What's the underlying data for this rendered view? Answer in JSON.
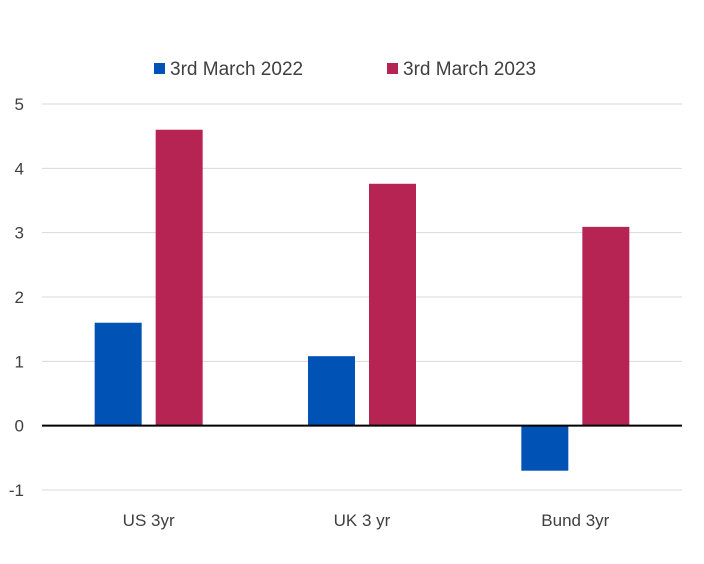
{
  "chart_data": {
    "type": "bar",
    "categories": [
      "US 3yr",
      "UK 3 yr",
      "Bund 3yr"
    ],
    "series": [
      {
        "name": "3rd March 2022",
        "color": "#0052b4",
        "values": [
          1.6,
          1.08,
          -0.7
        ]
      },
      {
        "name": "3rd March 2023",
        "color": "#b52452",
        "values": [
          4.6,
          3.76,
          3.09
        ]
      }
    ],
    "ylim": [
      -1,
      5
    ],
    "yticks": [
      "-1",
      "0",
      "1",
      "2",
      "3",
      "4",
      "5"
    ],
    "grid": true,
    "legend_position": "top"
  }
}
